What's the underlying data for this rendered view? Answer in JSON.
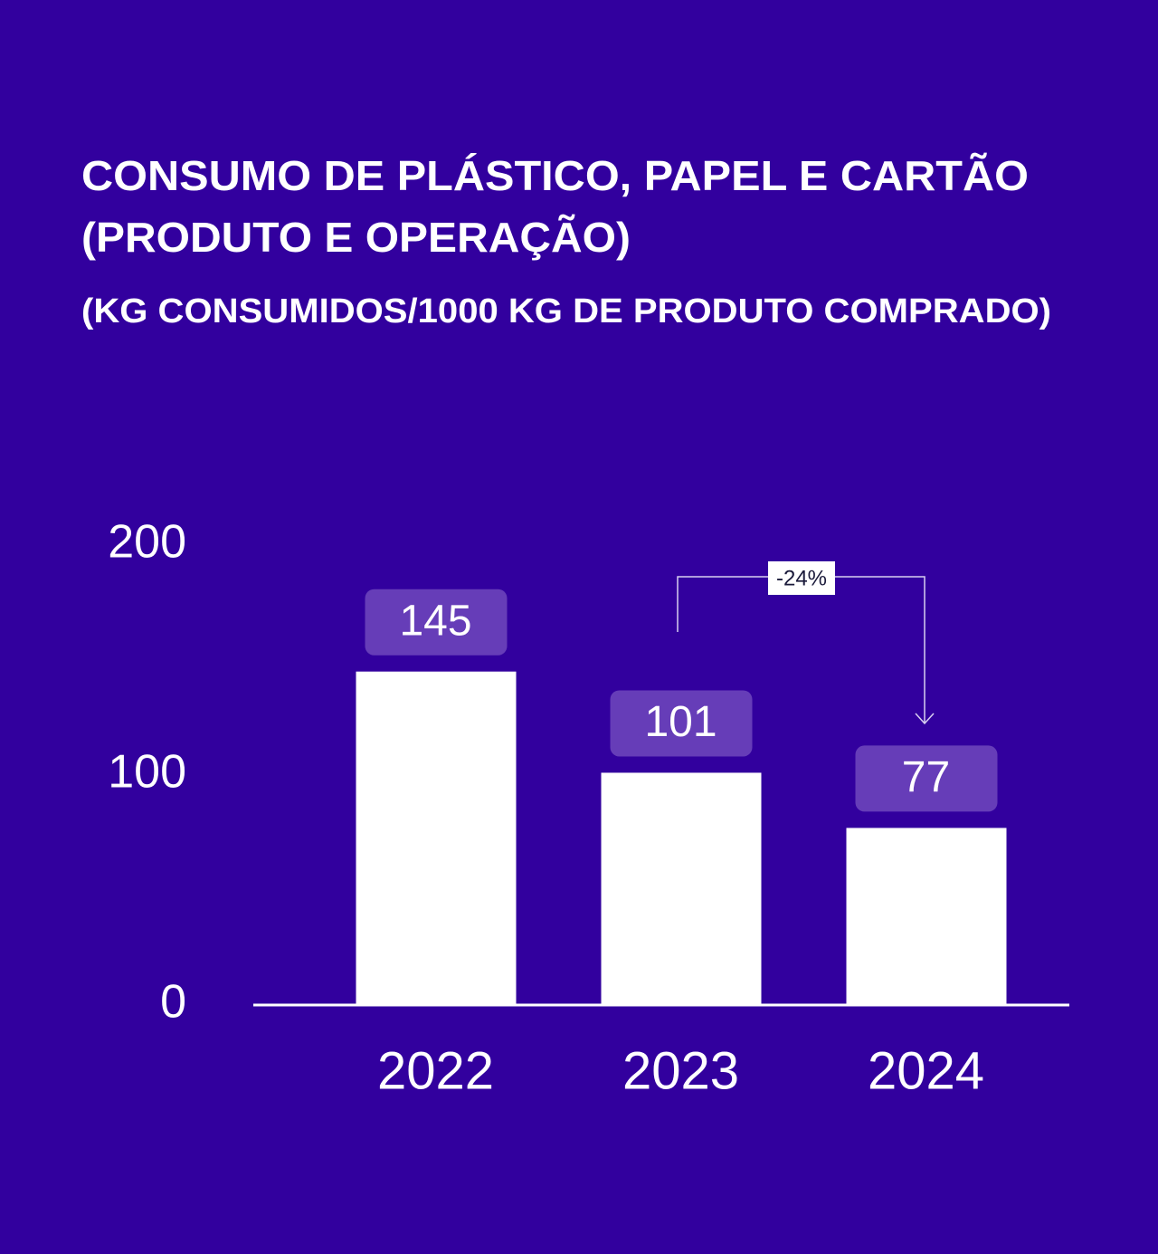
{
  "chart_data": {
    "type": "bar",
    "title": [
      "CONSUMO DE PLÁSTICO, PAPEL E CARTÃO",
      "(PRODUTO E OPERAÇÃO)"
    ],
    "subtitle": "(KG CONSUMIDOS/1000 KG DE PRODUTO COMPRADO)",
    "categories": [
      "2022",
      "2023",
      "2024"
    ],
    "values": [
      145,
      101,
      77
    ],
    "color": "#ffffff",
    "ylim": [
      0,
      200
    ],
    "yticks": [
      0,
      100,
      200
    ],
    "grid": false,
    "annotation": "-24%"
  }
}
